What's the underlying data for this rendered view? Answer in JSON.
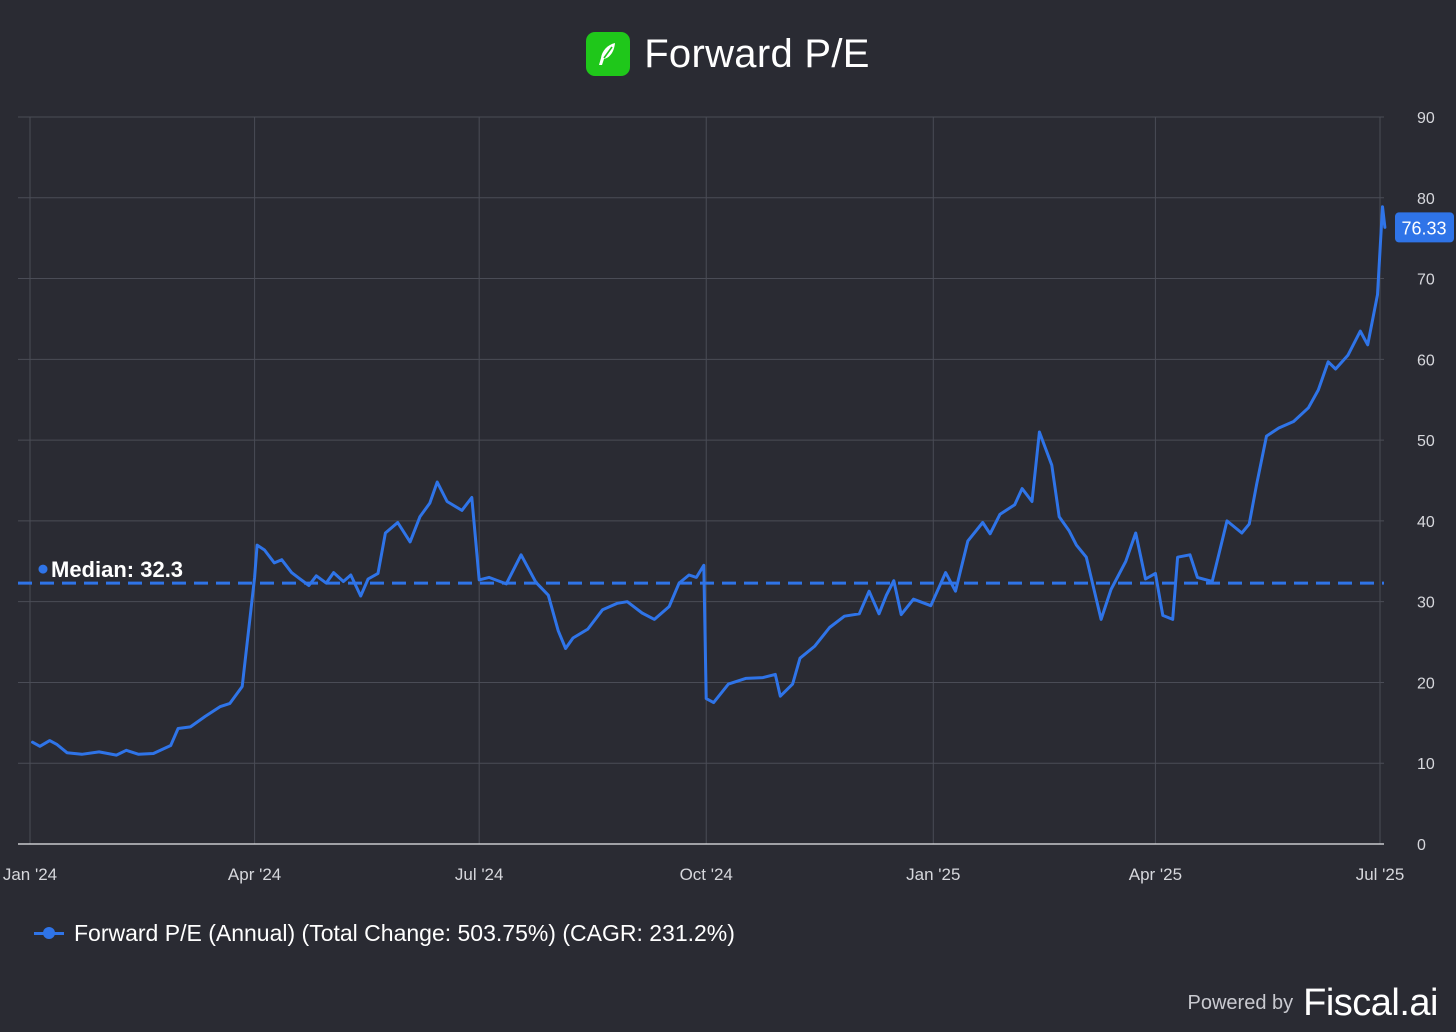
{
  "header": {
    "title": "Forward P/E",
    "logo_icon": "robinhood-feather-icon",
    "logo_color": "#1fc71a"
  },
  "chart_data": {
    "type": "line",
    "title": "Forward P/E",
    "xlabel": "",
    "ylabel": "",
    "ylim": [
      0,
      90
    ],
    "y_ticks": [
      "0",
      "10",
      "20",
      "30",
      "40",
      "50",
      "60",
      "70",
      "80",
      "90"
    ],
    "x_ticks": [
      {
        "label": "Jan '24",
        "date": "2024-01-01"
      },
      {
        "label": "Apr '24",
        "date": "2024-04-01"
      },
      {
        "label": "Jul '24",
        "date": "2024-07-01"
      },
      {
        "label": "Oct '24",
        "date": "2024-10-01"
      },
      {
        "label": "Jan '25",
        "date": "2025-01-01"
      },
      {
        "label": "Apr '25",
        "date": "2025-04-01"
      },
      {
        "label": "Jul '25",
        "date": "2025-07-01"
      }
    ],
    "xlim": [
      "2024-01-01",
      "2025-07-01"
    ],
    "grid": true,
    "line_color": "#2f74e8",
    "median": {
      "label": "Median: 32.3",
      "value": 32.3
    },
    "last_value_label": "76.33",
    "legend_position": "bottom-left",
    "series": [
      {
        "name": "Forward P/E (Annual) (Total Change: 503.75%) (CAGR: 231.2%)",
        "points": [
          [
            "2024-01-02",
            12.6
          ],
          [
            "2024-01-05",
            12.1
          ],
          [
            "2024-01-09",
            12.8
          ],
          [
            "2024-01-12",
            12.3
          ],
          [
            "2024-01-16",
            11.3
          ],
          [
            "2024-01-22",
            11.1
          ],
          [
            "2024-01-29",
            11.4
          ],
          [
            "2024-02-05",
            11.0
          ],
          [
            "2024-02-09",
            11.6
          ],
          [
            "2024-02-14",
            11.1
          ],
          [
            "2024-02-20",
            11.2
          ],
          [
            "2024-02-27",
            12.2
          ],
          [
            "2024-03-01",
            14.3
          ],
          [
            "2024-03-06",
            14.5
          ],
          [
            "2024-03-12",
            15.8
          ],
          [
            "2024-03-18",
            17.0
          ],
          [
            "2024-03-22",
            17.4
          ],
          [
            "2024-03-27",
            19.5
          ],
          [
            "2024-04-01",
            33.0
          ],
          [
            "2024-04-02",
            37.0
          ],
          [
            "2024-04-05",
            36.4
          ],
          [
            "2024-04-09",
            34.8
          ],
          [
            "2024-04-12",
            35.2
          ],
          [
            "2024-04-16",
            33.6
          ],
          [
            "2024-04-19",
            32.9
          ],
          [
            "2024-04-23",
            32.0
          ],
          [
            "2024-04-26",
            33.2
          ],
          [
            "2024-04-30",
            32.3
          ],
          [
            "2024-05-03",
            33.6
          ],
          [
            "2024-05-07",
            32.5
          ],
          [
            "2024-05-10",
            33.3
          ],
          [
            "2024-05-14",
            30.7
          ],
          [
            "2024-05-17",
            32.8
          ],
          [
            "2024-05-21",
            33.5
          ],
          [
            "2024-05-24",
            38.5
          ],
          [
            "2024-05-29",
            39.8
          ],
          [
            "2024-06-03",
            37.4
          ],
          [
            "2024-06-07",
            40.5
          ],
          [
            "2024-06-11",
            42.2
          ],
          [
            "2024-06-14",
            44.8
          ],
          [
            "2024-06-18",
            42.4
          ],
          [
            "2024-06-24",
            41.3
          ],
          [
            "2024-06-28",
            42.9
          ],
          [
            "2024-07-01",
            32.7
          ],
          [
            "2024-07-05",
            33.0
          ],
          [
            "2024-07-12",
            32.2
          ],
          [
            "2024-07-18",
            35.8
          ],
          [
            "2024-07-24",
            32.4
          ],
          [
            "2024-07-29",
            30.8
          ],
          [
            "2024-08-02",
            26.4
          ],
          [
            "2024-08-05",
            24.2
          ],
          [
            "2024-08-08",
            25.5
          ],
          [
            "2024-08-14",
            26.6
          ],
          [
            "2024-08-20",
            29.0
          ],
          [
            "2024-08-26",
            29.8
          ],
          [
            "2024-08-30",
            30.0
          ],
          [
            "2024-09-05",
            28.6
          ],
          [
            "2024-09-10",
            27.8
          ],
          [
            "2024-09-16",
            29.4
          ],
          [
            "2024-09-20",
            32.3
          ],
          [
            "2024-09-24",
            33.3
          ],
          [
            "2024-09-27",
            33.0
          ],
          [
            "2024-09-30",
            34.5
          ],
          [
            "2024-10-01",
            18.0
          ],
          [
            "2024-10-04",
            17.5
          ],
          [
            "2024-10-10",
            19.8
          ],
          [
            "2024-10-17",
            20.5
          ],
          [
            "2024-10-24",
            20.6
          ],
          [
            "2024-10-29",
            21.0
          ],
          [
            "2024-10-31",
            18.3
          ],
          [
            "2024-11-05",
            19.8
          ],
          [
            "2024-11-08",
            23.0
          ],
          [
            "2024-11-14",
            24.5
          ],
          [
            "2024-11-20",
            26.8
          ],
          [
            "2024-11-26",
            28.2
          ],
          [
            "2024-12-02",
            28.5
          ],
          [
            "2024-12-06",
            31.3
          ],
          [
            "2024-12-10",
            28.5
          ],
          [
            "2024-12-13",
            30.8
          ],
          [
            "2024-12-16",
            32.6
          ],
          [
            "2024-12-19",
            28.4
          ],
          [
            "2024-12-24",
            30.3
          ],
          [
            "2024-12-31",
            29.5
          ],
          [
            "2025-01-06",
            33.6
          ],
          [
            "2025-01-10",
            31.3
          ],
          [
            "2025-01-15",
            37.5
          ],
          [
            "2025-01-21",
            39.8
          ],
          [
            "2025-01-24",
            38.4
          ],
          [
            "2025-01-28",
            40.8
          ],
          [
            "2025-02-03",
            42.0
          ],
          [
            "2025-02-06",
            44.0
          ],
          [
            "2025-02-10",
            42.4
          ],
          [
            "2025-02-13",
            51.0
          ],
          [
            "2025-02-18",
            46.9
          ],
          [
            "2025-02-21",
            40.5
          ],
          [
            "2025-02-25",
            38.8
          ],
          [
            "2025-02-28",
            37.0
          ],
          [
            "2025-03-04",
            35.5
          ],
          [
            "2025-03-10",
            27.8
          ],
          [
            "2025-03-14",
            31.5
          ],
          [
            "2025-03-20",
            35.0
          ],
          [
            "2025-03-24",
            38.5
          ],
          [
            "2025-03-28",
            32.8
          ],
          [
            "2025-04-01",
            33.5
          ],
          [
            "2025-04-04",
            28.3
          ],
          [
            "2025-04-08",
            27.8
          ],
          [
            "2025-04-10",
            35.5
          ],
          [
            "2025-04-15",
            35.8
          ],
          [
            "2025-04-18",
            33.0
          ],
          [
            "2025-04-24",
            32.5
          ],
          [
            "2025-04-30",
            40.0
          ],
          [
            "2025-05-06",
            38.5
          ],
          [
            "2025-05-09",
            39.6
          ],
          [
            "2025-05-12",
            44.5
          ],
          [
            "2025-05-16",
            50.5
          ],
          [
            "2025-05-21",
            51.5
          ],
          [
            "2025-05-27",
            52.3
          ],
          [
            "2025-06-02",
            54.0
          ],
          [
            "2025-06-06",
            56.2
          ],
          [
            "2025-06-10",
            59.7
          ],
          [
            "2025-06-13",
            58.8
          ],
          [
            "2025-06-18",
            60.5
          ],
          [
            "2025-06-23",
            63.5
          ],
          [
            "2025-06-26",
            61.8
          ],
          [
            "2025-06-30",
            68.0
          ],
          [
            "2025-07-02",
            78.9
          ],
          [
            "2025-07-03",
            76.33
          ]
        ]
      }
    ]
  },
  "legend": {
    "label": "Forward P/E (Annual) (Total Change: 503.75%) (CAGR: 231.2%)"
  },
  "footer": {
    "powered_by": "Powered by",
    "brand": "Fiscal.ai"
  }
}
